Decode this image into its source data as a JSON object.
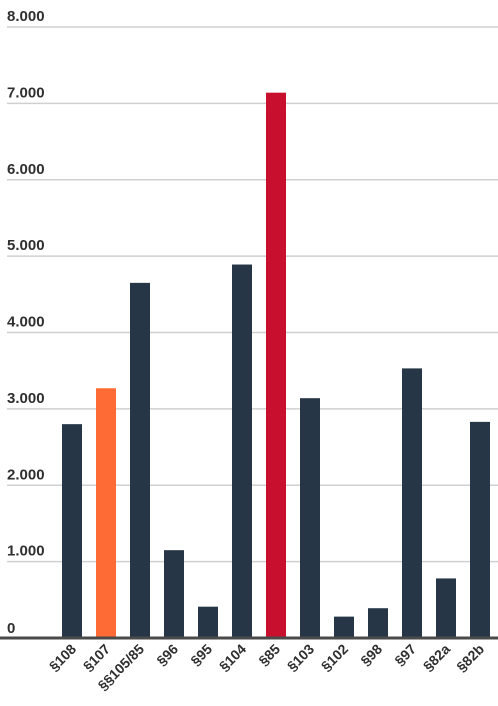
{
  "chart_data": {
    "type": "bar",
    "categories": [
      "§108",
      "§107",
      "§§105/85",
      "§96",
      "§95",
      "§104",
      "§85",
      "§103",
      "§102",
      "§98",
      "§97",
      "§82a",
      "§82b"
    ],
    "series": [
      {
        "values": [
          2800,
          3270,
          4650,
          1150,
          410,
          4890,
          7140,
          3140,
          280,
          390,
          3530,
          780,
          2830
        ]
      }
    ],
    "bar_colors": [
      "#273646",
      "#ff6b35",
      "#273646",
      "#273646",
      "#273646",
      "#273646",
      "#c8102e",
      "#273646",
      "#273646",
      "#273646",
      "#273646",
      "#273646",
      "#273646"
    ],
    "y_ticks": [
      {
        "value": 0,
        "label": "0"
      },
      {
        "value": 1000,
        "label": "1.000"
      },
      {
        "value": 2000,
        "label": "2.000"
      },
      {
        "value": 3000,
        "label": "3.000"
      },
      {
        "value": 4000,
        "label": "4.000"
      },
      {
        "value": 5000,
        "label": "5.000"
      },
      {
        "value": 6000,
        "label": "6.000"
      },
      {
        "value": 7000,
        "label": "7.000"
      },
      {
        "value": 8000,
        "label": "8.000"
      }
    ],
    "ylim": [
      0,
      8000
    ],
    "grid": true,
    "legend": "none",
    "colors": {
      "grid": "#d0d0d0",
      "axis": "#4a4a4a",
      "text": "#2f2f2f"
    }
  }
}
